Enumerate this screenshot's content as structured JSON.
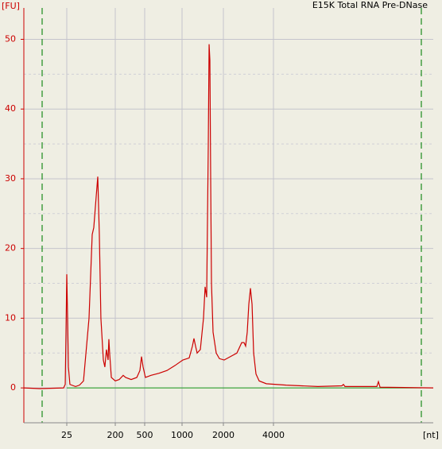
{
  "chart_data": {
    "type": "line",
    "title": "E15K Total RNA Pre-DNase",
    "y_label": "[FU]",
    "x_label": "[nt]",
    "x": [
      4,
      7.9,
      21.8,
      23.4,
      24.2,
      25,
      25.9,
      26.8,
      28.6,
      36.4,
      43.1,
      51.2,
      64.9,
      74.4,
      79.6,
      85.3,
      94.4,
      101,
      108,
      120,
      128,
      137,
      147,
      152,
      157,
      169,
      200,
      226,
      256,
      276,
      328,
      391,
      431,
      453,
      476,
      507,
      562,
      652,
      756,
      875,
      1013,
      1127,
      1190,
      1221,
      1254,
      1288,
      1359,
      1433,
      1472,
      1511,
      1553,
      1574,
      1595,
      1616,
      1638,
      1682,
      1774,
      1871,
      2022,
      2208,
      2411,
      2577,
      2662,
      2721,
      2782,
      2844,
      2909,
      2974,
      3040,
      3140,
      3282,
      3623,
      4772,
      7406,
      10310,
      10540,
      10770,
      16740,
      17110,
      17500,
      36560
    ],
    "values": [
      0,
      -0.1,
      0,
      0.5,
      8,
      16.3,
      10,
      3,
      0.5,
      0.2,
      0.4,
      1,
      10,
      22,
      23,
      26,
      30.3,
      22,
      10,
      4,
      3,
      5.5,
      4,
      7,
      5,
      1.5,
      1,
      1.2,
      1.8,
      1.5,
      1.2,
      1.5,
      2.5,
      4.5,
      3,
      1.5,
      1.8,
      2.1,
      2.5,
      3.2,
      4,
      4.3,
      6,
      7.1,
      6,
      5,
      5.5,
      10,
      14.5,
      13,
      35,
      49.3,
      47,
      30,
      15,
      8,
      5,
      4.2,
      4,
      4.5,
      5,
      6.5,
      6.5,
      6,
      8,
      12,
      14.3,
      12,
      5,
      2,
      1,
      0.6,
      0.4,
      0.2,
      0.3,
      0.5,
      0.2,
      0.2,
      0.9,
      0.1,
      0
    ],
    "color": "#cc0000",
    "xlim": [
      4,
      36560
    ],
    "xticks": [
      25,
      200,
      500,
      1000,
      2000,
      4000
    ],
    "xscale": "log",
    "ylim": [
      -5,
      54.5
    ],
    "yticks": [
      0,
      10,
      20,
      30,
      40,
      50
    ],
    "grid": true
  }
}
